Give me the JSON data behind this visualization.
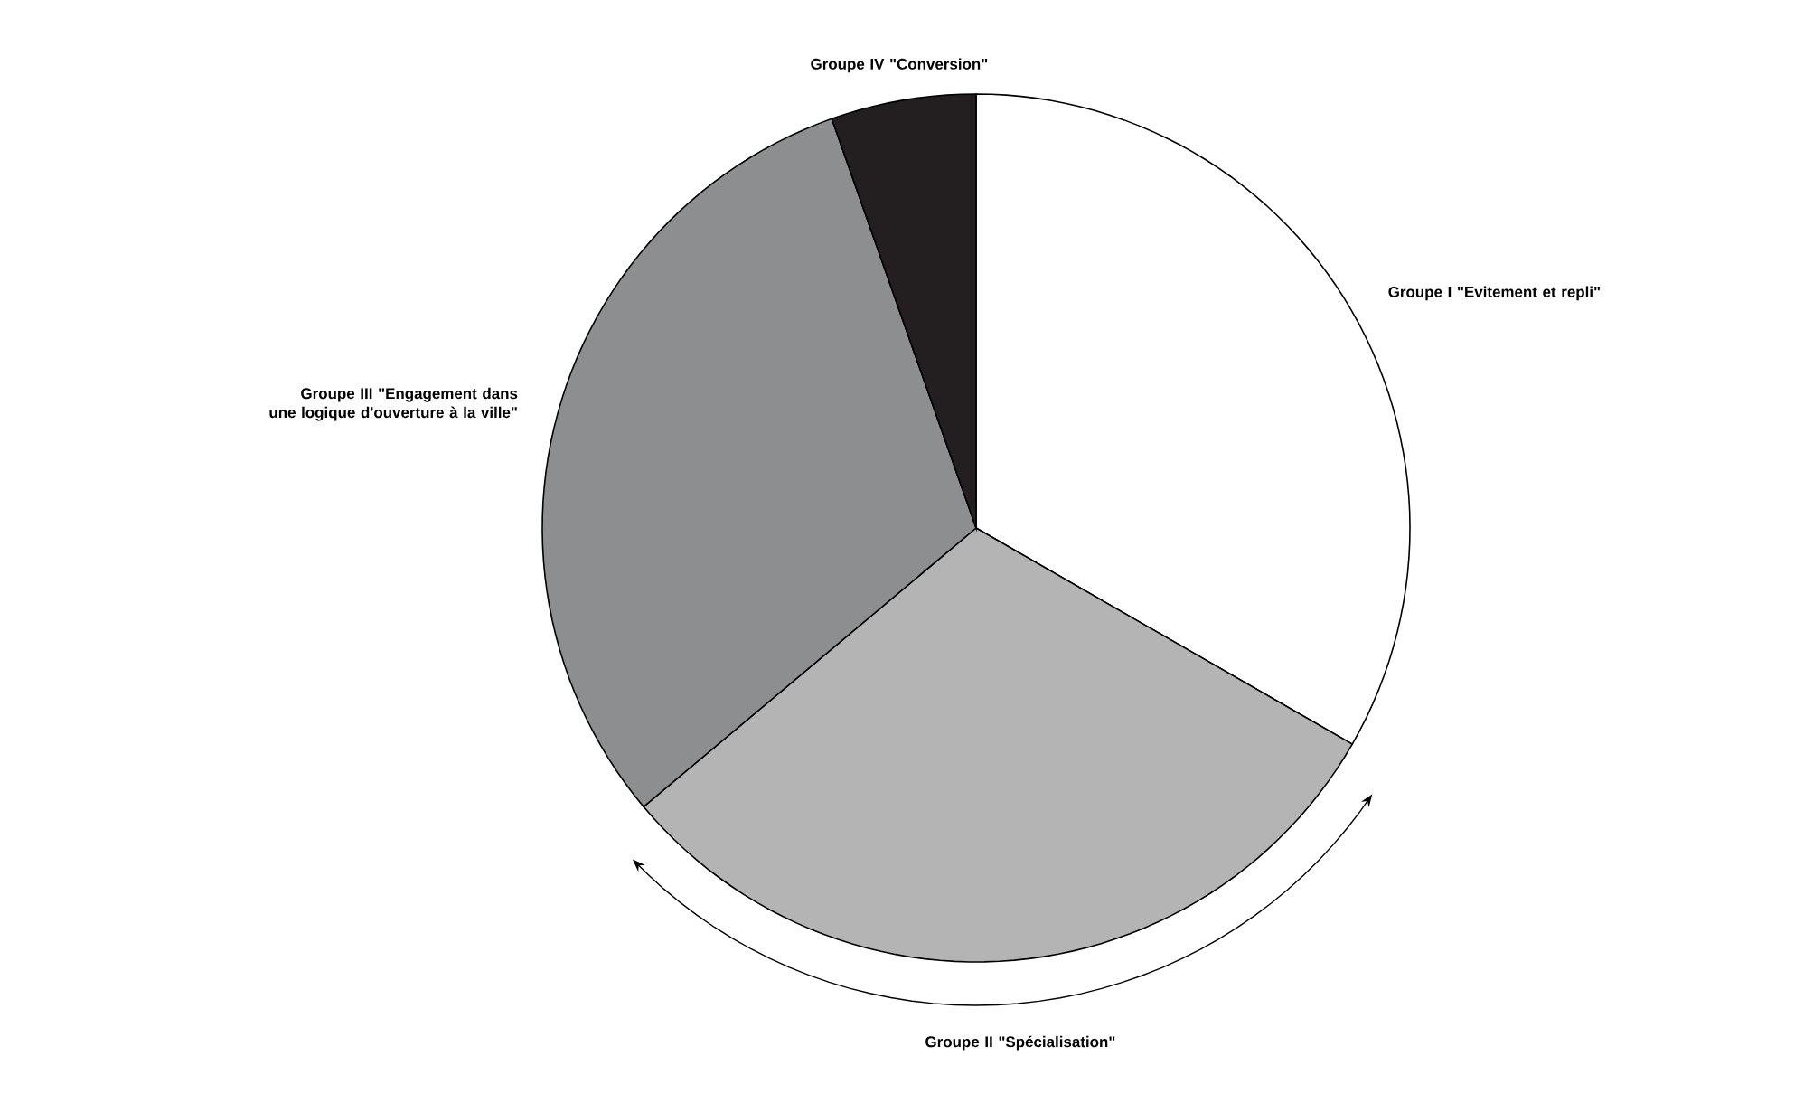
{
  "chart_data": {
    "type": "pie",
    "categories": [
      "Groupe I \"Evitement et repli\"",
      "Groupe II \"Spécialisation\"",
      "Groupe III \"Engagement dans une logique d'ouverture à la ville\"",
      "Groupe IV \"Conversion\""
    ],
    "values": [
      33.3,
      30.6,
      30.7,
      5.4
    ],
    "colors": [
      "#ffffff",
      "#b4b4b4",
      "#8c8e90",
      "#231f20"
    ]
  }
}
